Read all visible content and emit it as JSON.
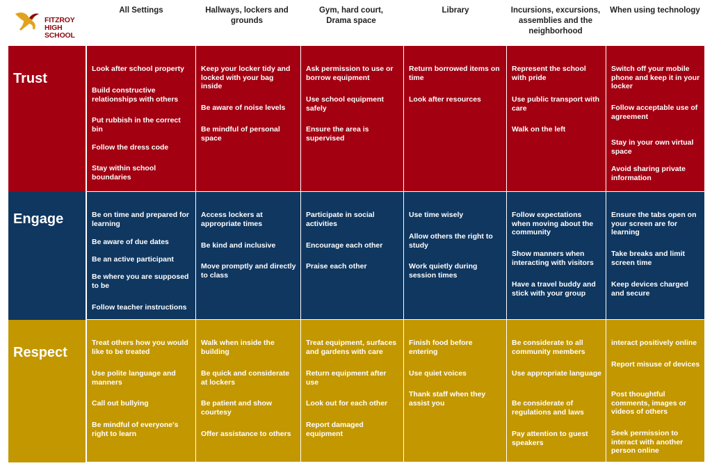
{
  "logo": {
    "line1": "FITZROY",
    "line2": "HIGH SCHOOL",
    "icon": "pegasus-icon"
  },
  "colors": {
    "trust": "#a30012",
    "engage": "#0f3760",
    "respect": "#c39700"
  },
  "columns": [
    "All Settings",
    "Hallways, lockers and grounds",
    "Gym, hard court, Drama space",
    "Library",
    "Incursions, excursions, assemblies and the neighborhood",
    "When using technology"
  ],
  "rows": [
    {
      "label": "Trust",
      "cells": [
        [
          "Look after school property",
          "Build constructive relationships with others",
          "Put rubbish in the correct bin",
          "Follow the dress code",
          "Stay within school boundaries"
        ],
        [
          "Keep your locker tidy and locked with your bag inside",
          "Be aware  of noise levels",
          "Be mindful of  personal space"
        ],
        [
          "Ask permission to use  or borrow equipment",
          "Use  school equipment safely",
          "Ensure the area is supervised"
        ],
        [
          "Return borrowed items on time",
          "Look after resources"
        ],
        [
          "Represent the school with pride",
          "Use public transport with care",
          "Walk on the left"
        ],
        [
          "Switch off your mobile phone and keep it  in your locker",
          "Follow acceptable use of agreement",
          "Stay in your own virtual space",
          "Avoid sharing private information"
        ]
      ]
    },
    {
      "label": "Engage",
      "cells": [
        [
          "Be on time  and prepared for learning",
          " Be aware of due dates",
          "Be an active participant",
          "Be where you are supposed to be",
          "Follow teacher instructions"
        ],
        [
          "Access lockers at appropriate times",
          "Be kind and inclusive",
          "Move promptly and directly to class"
        ],
        [
          "Participate in social activities",
          "Encourage each other",
          "Praise each other"
        ],
        [
          "Use time wisely",
          "Allow others  the right to study",
          " Work quietly during session times"
        ],
        [
          "Follow expectations when moving about the community",
          "Show manners when interacting with visitors",
          "Have a travel buddy and stick with your group"
        ],
        [
          "Ensure the  tabs open on your screen are for learning",
          "Take breaks and limit screen time",
          "Keep devices charged and secure"
        ]
      ]
    },
    {
      "label": "Respect",
      "cells": [
        [
          "Treat others how you would like to be treated",
          "Use polite language and manners",
          "Call out bullying",
          "Be mindful of everyone's right to learn"
        ],
        [
          "Walk when inside the building",
          "Be quick and considerate at lockers",
          " Be patient and show courtesy",
          "Offer assistance to others"
        ],
        [
          "Treat equipment, surfaces and gardens with care",
          "Return equipment after use",
          "Look out for each other",
          "Report damaged equipment"
        ],
        [
          "Finish food before entering",
          "Use quiet voices",
          "Thank  staff when they assist you"
        ],
        [
          "Be considerate to all community members",
          "Use appropriate language",
          "Be considerate  of regulations and laws",
          "Pay attention to guest speakers"
        ],
        [
          "interact positively online",
          " Report misuse of devices",
          "Post thoughtful comments, images or videos of  others",
          "Seek  permission  to interact with another person online"
        ]
      ]
    }
  ]
}
